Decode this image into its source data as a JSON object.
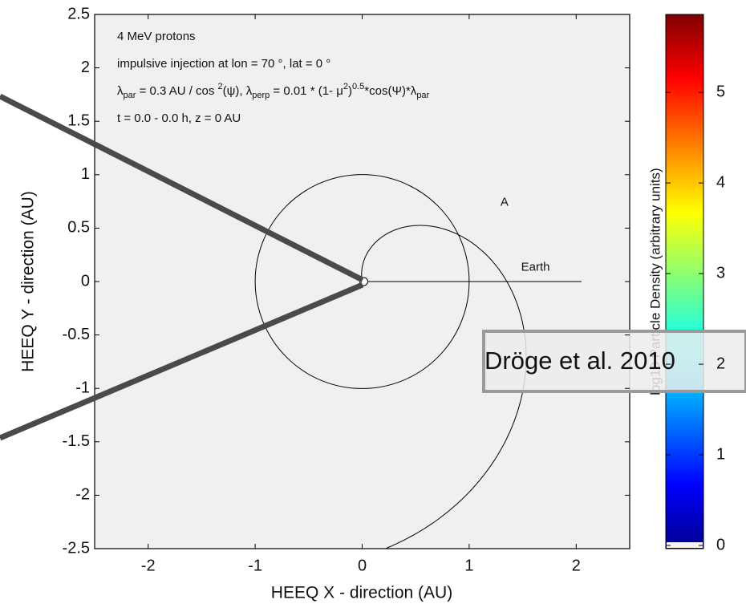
{
  "chart_data": {
    "type": "field-map",
    "xlabel": "HEEQ  X - direction (AU)",
    "ylabel": "HEEQ  Y - direction (AU)",
    "xlim": [
      -2.5,
      2.5
    ],
    "ylim": [
      -2.5,
      2.5
    ],
    "xticks": [
      -2,
      -1,
      0,
      1,
      2
    ],
    "yticks": [
      -2.5,
      -2,
      -1.5,
      -1,
      -0.5,
      0,
      0.5,
      1,
      1.5,
      2,
      2.5
    ],
    "annotations": [
      [
        {
          "text": "4 MeV protons"
        }
      ],
      [
        {
          "text": "impulsive injection at  lon = 70   °, lat = 0 °"
        }
      ],
      [
        {
          "text": "λ"
        },
        {
          "text": "par",
          "pos": "sub"
        },
        {
          "text": " = 0.3 AU / cos  "
        },
        {
          "text": "2",
          "pos": "sup"
        },
        {
          "text": "(ψ),   λ"
        },
        {
          "text": "perp",
          "pos": "sub"
        },
        {
          "text": " = 0.01 * (1- μ"
        },
        {
          "text": "2",
          "pos": "sup"
        },
        {
          "text": ")"
        },
        {
          "text": "0.5",
          "pos": "sup"
        },
        {
          "text": "*cos(Ψ)*λ"
        },
        {
          "text": "par",
          "pos": "sub"
        }
      ],
      [
        {
          "text": "t = 0.0 - 0.0 h,  z = 0 AU"
        }
      ]
    ],
    "point_labels": [
      "A",
      "Earth"
    ],
    "colorbar": {
      "label": "log10   Particle Density (arbitrary units)",
      "lim": [
        0,
        5.86
      ],
      "ticks": [
        0,
        1,
        2,
        3,
        4,
        5
      ],
      "colormap": "jet"
    },
    "overlay_text": "Dröge et al. 2010"
  }
}
